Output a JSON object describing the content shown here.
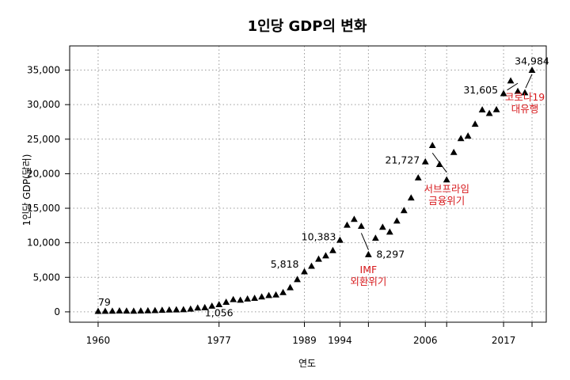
{
  "chart_data": {
    "type": "scatter",
    "title": "1인당 GDP의 변화",
    "xlabel": "연도",
    "ylabel": "1인당 GDP(달러)",
    "xlim": [
      1956,
      2023
    ],
    "ylim": [
      -1500,
      38500
    ],
    "grid": true,
    "marker": "triangle",
    "x_ticks": [
      1960,
      1977,
      1989,
      1994,
      2006,
      2017
    ],
    "y_ticks": [
      0,
      5000,
      10000,
      15000,
      20000,
      25000,
      30000,
      35000
    ],
    "y_tick_labels": [
      "0",
      "5,000",
      "10,000",
      "15,000",
      "20,000",
      "25,000",
      "30,000",
      "35,000"
    ],
    "x_grid": [
      1960,
      1977,
      1989,
      1994,
      1998,
      2006,
      2009,
      2017,
      2021
    ],
    "series": [
      {
        "x": [
          1960,
          1961,
          1962,
          1963,
          1964,
          1965,
          1966,
          1967,
          1968,
          1969,
          1970,
          1971,
          1972,
          1973,
          1974,
          1975,
          1976,
          1977,
          1978,
          1979,
          1980,
          1981,
          1982,
          1983,
          1984,
          1985,
          1986,
          1987,
          1988,
          1989,
          1990,
          1991,
          1992,
          1993,
          1994,
          1995,
          1996,
          1997,
          1998,
          1999,
          2000,
          2001,
          2002,
          2003,
          2004,
          2005,
          2006,
          2007,
          2008,
          2009,
          2010,
          2011,
          2012,
          2013,
          2014,
          2015,
          2016,
          2017,
          2018,
          2019,
          2020,
          2021
        ],
        "y": [
          79,
          93,
          106,
          146,
          124,
          108,
          133,
          161,
          198,
          243,
          279,
          301,
          324,
          406,
          563,
          617,
          834,
          1056,
          1406,
          1784,
          1704,
          1870,
          1973,
          2168,
          2373,
          2457,
          2803,
          3511,
          4686,
          5818,
          6610,
          7637,
          8126,
          8885,
          10383,
          12564,
          13403,
          12398,
          8297,
          10672,
          12263,
          11561,
          13165,
          14673,
          16496,
          19403,
          21727,
          24086,
          21345,
          19122,
          23087,
          25096,
          25459,
          27180,
          29253,
          28737,
          29274,
          31605,
          33447,
          31929,
          31728,
          34984
        ]
      }
    ],
    "data_labels": [
      {
        "x": 1960,
        "y": 79,
        "text": "79"
      },
      {
        "x": 1977,
        "y": 1056,
        "text": "1,056"
      },
      {
        "x": 1989,
        "y": 5818,
        "text": "5,818"
      },
      {
        "x": 1994,
        "y": 10383,
        "text": "10,383"
      },
      {
        "x": 1998,
        "y": 8297,
        "text": "8,297"
      },
      {
        "x": 2006,
        "y": 21727,
        "text": "21,727"
      },
      {
        "x": 2017,
        "y": 31605,
        "text": "31,605"
      },
      {
        "x": 2021,
        "y": 34984,
        "text": "34,984"
      }
    ],
    "annotations": [
      {
        "lines": [
          "IMF",
          "외환위기"
        ],
        "color": "#d7191c",
        "x": 1998,
        "y": 5600
      },
      {
        "lines": [
          "서브프라임",
          "금융위기"
        ],
        "color": "#d7191c",
        "x": 2009,
        "y": 17300
      },
      {
        "lines": [
          "코로나19",
          "대유행"
        ],
        "color": "#d7191c",
        "x": 2020,
        "y": 30600
      }
    ],
    "connectors": [
      {
        "x1": 1997,
        "y1": 11400,
        "x2": 1998,
        "y2": 9000
      },
      {
        "x1": 2007,
        "y1": 23000,
        "x2": 2009,
        "y2": 20200
      },
      {
        "x1": 2019,
        "y1": 33100,
        "x2": 2017.5,
        "y2": 32100
      },
      {
        "x1": 2021,
        "y1": 34400,
        "x2": 2020.1,
        "y2": 32400
      }
    ]
  }
}
